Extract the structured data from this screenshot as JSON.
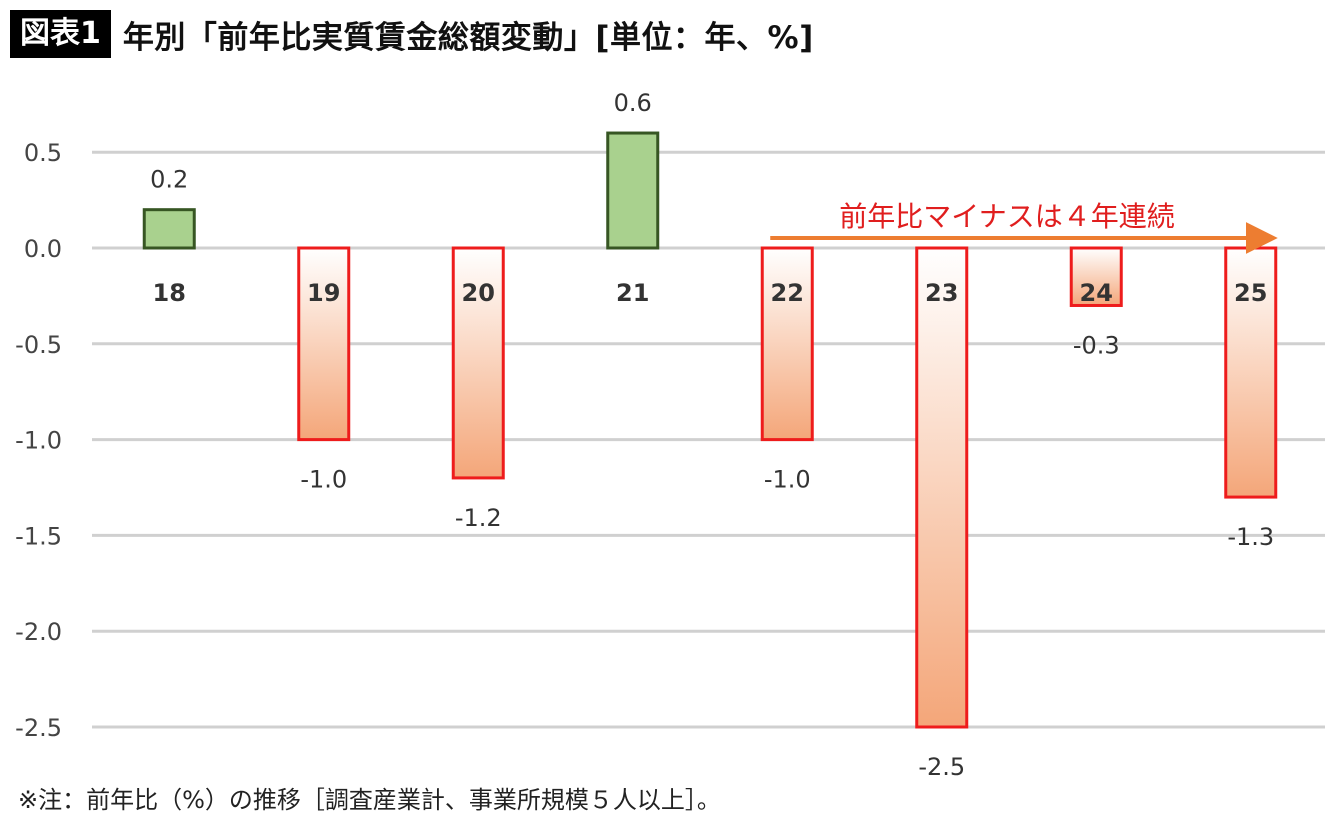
{
  "header": {
    "badge": "図表1",
    "title": "年別「前年比実質賃金総額変動」[単位：年、%]"
  },
  "footnote": "※注：前年比（%）の推移［調査産業計、事業所規模５人以上］。",
  "colors": {
    "positive_fill": "#a9d18e",
    "positive_stroke": "#375623",
    "negative_stroke": "#ee1c1c",
    "negative_gradient_top": "#ffffff",
    "negative_gradient_bottom": "#f4a679",
    "grid": "#d0d0d0",
    "annotation_arrow": "#ed7d31",
    "annotation_text": "#e01e1e"
  },
  "chart_data": {
    "type": "bar",
    "categories": [
      "18",
      "19",
      "20",
      "21",
      "22",
      "23",
      "24",
      "25"
    ],
    "values": [
      0.2,
      -1.0,
      -1.2,
      0.6,
      -1.0,
      -2.5,
      -0.3,
      -1.3
    ],
    "value_labels": [
      "0.2",
      "-1.0",
      "-1.2",
      "0.6",
      "-1.0",
      "-2.5",
      "-0.3",
      "-1.3"
    ],
    "yticks": [
      0.5,
      0.0,
      -0.5,
      -1.0,
      -1.5,
      -2.0,
      -2.5
    ],
    "ytick_labels": [
      "0.5",
      "0.0",
      "-0.5",
      "-1.0",
      "-1.5",
      "-2.0",
      "-2.5"
    ],
    "ylim": [
      -2.5,
      0.6
    ],
    "grid": true,
    "annotation": {
      "text": "前年比マイナスは４年連続",
      "from_category": "22",
      "to_category": "25"
    }
  }
}
